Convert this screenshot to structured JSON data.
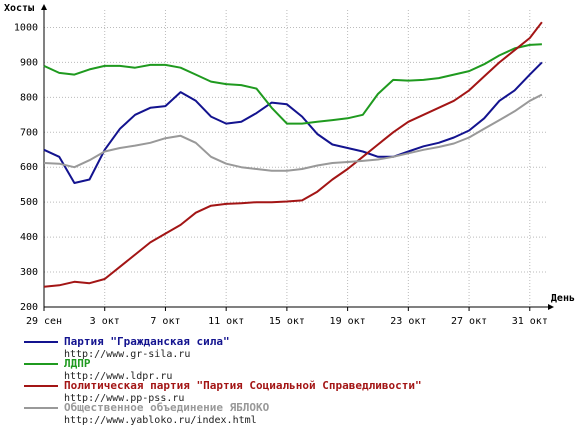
{
  "chart_data": {
    "type": "line",
    "y_label": "Хосты",
    "x_label": "День",
    "xlim": [
      0,
      33.2
    ],
    "ylim": [
      200,
      1050
    ],
    "xticks": [
      {
        "value": 0,
        "label": "29 сен"
      },
      {
        "value": 4,
        "label": "3 окт"
      },
      {
        "value": 8,
        "label": "7 окт"
      },
      {
        "value": 12,
        "label": "11 окт"
      },
      {
        "value": 16,
        "label": "15 окт"
      },
      {
        "value": 20,
        "label": "19 окт"
      },
      {
        "value": 24,
        "label": "23 окт"
      },
      {
        "value": 28,
        "label": "27 окт"
      },
      {
        "value": 32,
        "label": "31 окт"
      }
    ],
    "yticks": [
      200,
      300,
      400,
      500,
      600,
      700,
      800,
      900,
      1000
    ],
    "grid": true,
    "x": [
      0,
      1,
      2,
      3,
      4,
      5,
      6,
      7,
      8,
      9,
      10,
      11,
      12,
      13,
      14,
      15,
      16,
      17,
      18,
      19,
      20,
      21,
      22,
      23,
      24,
      25,
      26,
      27,
      28,
      29,
      30,
      31,
      32,
      32.8
    ],
    "series": [
      {
        "name": "Партия \"Гражданская сила\"",
        "url": "http://www.gr-sila.ru",
        "color": "#13138f",
        "values": [
          650,
          630,
          555,
          565,
          650,
          710,
          750,
          770,
          775,
          815,
          790,
          745,
          725,
          730,
          755,
          785,
          780,
          745,
          695,
          665,
          655,
          645,
          630,
          630,
          645,
          660,
          670,
          685,
          705,
          740,
          790,
          820,
          865,
          900
        ]
      },
      {
        "name": "ЛДПР",
        "url": "http://www.ldpr.ru",
        "color": "#1f9a1f",
        "values": [
          890,
          870,
          865,
          880,
          890,
          890,
          885,
          893,
          893,
          885,
          865,
          845,
          838,
          835,
          825,
          770,
          725,
          725,
          730,
          735,
          740,
          750,
          810,
          850,
          848,
          850,
          855,
          865,
          875,
          895,
          920,
          940,
          950,
          952
        ]
      },
      {
        "name": "Политическая партия \"Партия Социальной Справедливости\"",
        "url": "http://www.pp-pss.ru",
        "color": "#a31515",
        "values": [
          258,
          262,
          272,
          268,
          280,
          315,
          350,
          385,
          410,
          435,
          470,
          490,
          495,
          497,
          500,
          500,
          502,
          505,
          530,
          565,
          595,
          630,
          665,
          700,
          730,
          750,
          770,
          790,
          820,
          860,
          900,
          935,
          970,
          1015
        ]
      },
      {
        "name": "Общественное объединение ЯБЛОКО",
        "url": "http://www.yabloko.ru/index.html",
        "color": "#999999",
        "values": [
          612,
          610,
          600,
          620,
          645,
          655,
          662,
          670,
          683,
          690,
          670,
          630,
          610,
          600,
          595,
          590,
          590,
          595,
          605,
          612,
          615,
          618,
          622,
          630,
          640,
          650,
          658,
          668,
          685,
          710,
          735,
          760,
          790,
          808
        ]
      }
    ]
  }
}
